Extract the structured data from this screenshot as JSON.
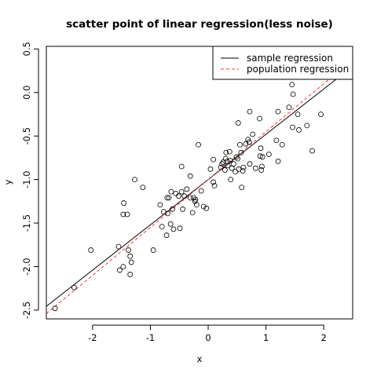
{
  "chart_data": {
    "type": "scatter",
    "title": "scatter point of linear regression(less noise)",
    "xlabel": "x",
    "ylabel": "y",
    "xlim": [
      -2.8,
      2.5
    ],
    "ylim": [
      -2.6,
      0.53
    ],
    "x_ticks": [
      -2,
      -1,
      0,
      1,
      2
    ],
    "y_ticks": [
      -2.5,
      -2.0,
      -1.5,
      -1.0,
      -0.5,
      0.0,
      0.5
    ],
    "x_tick_labels": [
      "-2",
      "-1",
      "0",
      "1",
      "2"
    ],
    "y_tick_labels": [
      "-2.5",
      "-2.0",
      "-1.5",
      "-1.0",
      "-0.5",
      "0.0",
      "0.5"
    ],
    "grid": false,
    "legend_position": "top-right",
    "lines": [
      {
        "name": "sample regression",
        "color": "#000000",
        "dash": "solid",
        "intercept": -1.0,
        "slope": 0.52
      },
      {
        "name": "population regression",
        "color": "#ff3333",
        "dash": "dashed",
        "intercept": -1.0,
        "slope": 0.55
      }
    ],
    "points": [
      [
        -2.65,
        -2.48
      ],
      [
        -2.32,
        -2.24
      ],
      [
        -2.03,
        -1.81
      ],
      [
        -1.55,
        -1.77
      ],
      [
        -1.53,
        -2.04
      ],
      [
        -1.47,
        -2.0
      ],
      [
        -1.47,
        -1.4
      ],
      [
        -1.46,
        -1.27
      ],
      [
        -1.4,
        -1.4
      ],
      [
        -1.38,
        -1.81
      ],
      [
        -1.35,
        -2.09
      ],
      [
        -1.35,
        -1.88
      ],
      [
        -1.33,
        -1.95
      ],
      [
        -1.27,
        -1.0
      ],
      [
        -1.13,
        -1.09
      ],
      [
        -0.95,
        -1.81
      ],
      [
        -0.83,
        -1.29
      ],
      [
        -0.8,
        -1.54
      ],
      [
        -0.77,
        -1.37
      ],
      [
        -0.72,
        -1.64
      ],
      [
        -0.71,
        -1.21
      ],
      [
        -0.7,
        -1.39
      ],
      [
        -0.68,
        -1.21
      ],
      [
        -0.65,
        -1.51
      ],
      [
        -0.64,
        -1.14
      ],
      [
        -0.62,
        -1.34
      ],
      [
        -0.6,
        -1.57
      ],
      [
        -0.56,
        -1.16
      ],
      [
        -0.51,
        -1.19
      ],
      [
        -0.49,
        -1.56
      ],
      [
        -0.46,
        -1.14
      ],
      [
        -0.46,
        -0.85
      ],
      [
        -0.44,
        -1.34
      ],
      [
        -0.41,
        -1.19
      ],
      [
        -0.37,
        -1.11
      ],
      [
        -0.31,
        -1.21
      ],
      [
        -0.31,
        -0.96
      ],
      [
        -0.27,
        -1.38
      ],
      [
        -0.25,
        -1.21
      ],
      [
        -0.23,
        -1.25
      ],
      [
        -0.22,
        -1.23
      ],
      [
        -0.2,
        -1.29
      ],
      [
        -0.17,
        -0.6
      ],
      [
        -0.12,
        -1.13
      ],
      [
        -0.08,
        -1.31
      ],
      [
        -0.03,
        -1.33
      ],
      [
        0.04,
        -0.88
      ],
      [
        0.09,
        -0.77
      ],
      [
        0.09,
        -1.03
      ],
      [
        0.11,
        -1.07
      ],
      [
        0.22,
        -0.86
      ],
      [
        0.24,
        -0.82
      ],
      [
        0.26,
        -0.8
      ],
      [
        0.29,
        -0.89
      ],
      [
        0.3,
        -0.76
      ],
      [
        0.31,
        -0.69
      ],
      [
        0.33,
        -0.79
      ],
      [
        0.34,
        -0.84
      ],
      [
        0.37,
        -0.68
      ],
      [
        0.38,
        -0.78
      ],
      [
        0.39,
        -1.0
      ],
      [
        0.41,
        -0.87
      ],
      [
        0.44,
        -0.82
      ],
      [
        0.47,
        -0.91
      ],
      [
        0.49,
        -0.74
      ],
      [
        0.51,
        -0.76
      ],
      [
        0.52,
        -0.35
      ],
      [
        0.53,
        -0.88
      ],
      [
        0.55,
        -0.6
      ],
      [
        0.57,
        -0.69
      ],
      [
        0.58,
        -1.09
      ],
      [
        0.6,
        -0.9
      ],
      [
        0.61,
        -0.86
      ],
      [
        0.65,
        -0.59
      ],
      [
        0.69,
        -0.54
      ],
      [
        0.71,
        -0.57
      ],
      [
        0.72,
        -0.82
      ],
      [
        0.72,
        -0.22
      ],
      [
        0.77,
        -0.48
      ],
      [
        0.82,
        -0.87
      ],
      [
        0.89,
        -0.3
      ],
      [
        0.9,
        -0.73
      ],
      [
        0.91,
        -0.64
      ],
      [
        0.92,
        -0.89
      ],
      [
        0.93,
        -0.85
      ],
      [
        0.94,
        -0.74
      ],
      [
        1.05,
        -0.71
      ],
      [
        1.18,
        -0.55
      ],
      [
        1.21,
        -0.79
      ],
      [
        1.21,
        -0.22
      ],
      [
        1.28,
        -0.6
      ],
      [
        1.4,
        -0.17
      ],
      [
        1.45,
        0.09
      ],
      [
        1.46,
        -0.4
      ],
      [
        1.47,
        -0.02
      ],
      [
        1.55,
        -0.25
      ],
      [
        1.57,
        -0.43
      ],
      [
        1.71,
        -0.38
      ],
      [
        1.8,
        -0.67
      ],
      [
        1.95,
        -0.25
      ]
    ]
  }
}
